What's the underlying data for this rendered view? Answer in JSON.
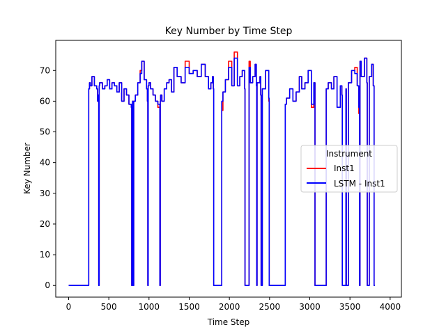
{
  "chart_data": {
    "type": "line",
    "title": "Key Number by Time Step",
    "xlabel": "Time Step",
    "ylabel": "Key Number",
    "xlim": [
      -160,
      4140
    ],
    "ylim": [
      -3.8,
      79.8
    ],
    "xticks": [
      0,
      500,
      1000,
      1500,
      2000,
      2500,
      3000,
      3500,
      4000
    ],
    "yticks": [
      0,
      10,
      20,
      30,
      40,
      50,
      60,
      70
    ],
    "grid": false,
    "legend": {
      "title": "Instrument",
      "position": "center-right"
    },
    "series": [
      {
        "name": "Inst1",
        "color": "#ff0000",
        "x": [
          0,
          245,
          250,
          260,
          270,
          290,
          320,
          350,
          360,
          370,
          375,
          380,
          385,
          420,
          450,
          480,
          510,
          540,
          570,
          600,
          630,
          660,
          690,
          720,
          750,
          780,
          785,
          795,
          800,
          805,
          810,
          830,
          860,
          890,
          910,
          940,
          970,
          980,
          985,
          990,
          1000,
          1020,
          1050,
          1080,
          1110,
          1135,
          1140,
          1145,
          1160,
          1190,
          1220,
          1250,
          1280,
          1310,
          1350,
          1400,
          1450,
          1500,
          1550,
          1600,
          1650,
          1700,
          1740,
          1770,
          1790,
          1800,
          1805,
          1900,
          1905,
          1920,
          1950,
          1990,
          2030,
          2060,
          2100,
          2130,
          2160,
          2190,
          2195,
          2240,
          2245,
          2260,
          2290,
          2320,
          2335,
          2340,
          2345,
          2380,
          2390,
          2395,
          2410,
          2450,
          2490,
          2495,
          2690,
          2695,
          2710,
          2750,
          2790,
          2830,
          2870,
          2900,
          2940,
          2980,
          3020,
          3050,
          3065,
          3070,
          3200,
          3205,
          3230,
          3270,
          3300,
          3340,
          3380,
          3400,
          3405,
          3450,
          3455,
          3480,
          3520,
          3560,
          3590,
          3610,
          3620,
          3625,
          3640,
          3680,
          3710,
          3715,
          3740,
          3770,
          3790,
          3800,
          3810
        ],
        "y": [
          0,
          0,
          64,
          66,
          65,
          68,
          65,
          64,
          60,
          62,
          0,
          65,
          66,
          64,
          65,
          67,
          64,
          66,
          65,
          63,
          66,
          60,
          64,
          62,
          59,
          58,
          0,
          60,
          54,
          0,
          60,
          62,
          66,
          70,
          73,
          67,
          64,
          60,
          0,
          65,
          66,
          64,
          62,
          60,
          58,
          0,
          60,
          62,
          60,
          64,
          66,
          67,
          63,
          71,
          68,
          66,
          73,
          69,
          70,
          68,
          72,
          68,
          64,
          66,
          68,
          64,
          0,
          0,
          57,
          63,
          67,
          73,
          65,
          76,
          65,
          68,
          70,
          64,
          0,
          0,
          73,
          66,
          68,
          72,
          65,
          0,
          66,
          68,
          62,
          0,
          64,
          70,
          60,
          0,
          0,
          59,
          61,
          64,
          60,
          63,
          68,
          64,
          66,
          70,
          58,
          66,
          0,
          0,
          0,
          64,
          66,
          64,
          68,
          58,
          65,
          62,
          0,
          64,
          0,
          66,
          70,
          71,
          65,
          56,
          0,
          73,
          68,
          74,
          66,
          0,
          68,
          72,
          65,
          0,
          0
        ]
      },
      {
        "name": "LSTM - Inst1",
        "color": "#0000ff",
        "x": [
          0,
          245,
          250,
          260,
          270,
          290,
          320,
          350,
          360,
          370,
          375,
          380,
          385,
          420,
          450,
          480,
          510,
          540,
          570,
          600,
          630,
          660,
          690,
          720,
          750,
          780,
          785,
          795,
          800,
          805,
          810,
          830,
          860,
          890,
          910,
          940,
          970,
          980,
          985,
          990,
          1000,
          1020,
          1050,
          1080,
          1110,
          1135,
          1140,
          1145,
          1160,
          1190,
          1220,
          1250,
          1280,
          1310,
          1350,
          1400,
          1450,
          1500,
          1550,
          1600,
          1650,
          1700,
          1740,
          1770,
          1790,
          1800,
          1805,
          1900,
          1905,
          1920,
          1950,
          1990,
          2030,
          2060,
          2100,
          2130,
          2160,
          2190,
          2195,
          2240,
          2245,
          2260,
          2290,
          2320,
          2335,
          2340,
          2345,
          2380,
          2390,
          2395,
          2410,
          2450,
          2490,
          2495,
          2690,
          2695,
          2710,
          2750,
          2790,
          2830,
          2870,
          2900,
          2940,
          2980,
          3020,
          3050,
          3065,
          3070,
          3200,
          3205,
          3230,
          3270,
          3300,
          3340,
          3380,
          3400,
          3405,
          3450,
          3455,
          3480,
          3520,
          3560,
          3590,
          3610,
          3620,
          3625,
          3640,
          3680,
          3710,
          3715,
          3740,
          3770,
          3790,
          3800,
          3810
        ],
        "y": [
          0,
          0,
          64,
          66,
          65,
          68,
          65,
          64,
          60,
          62,
          0,
          65,
          66,
          64,
          65,
          67,
          64,
          66,
          65,
          63,
          66,
          60,
          64,
          62,
          59,
          58,
          0,
          60,
          56,
          0,
          60,
          62,
          66,
          69,
          73,
          67,
          64,
          60,
          0,
          65,
          66,
          64,
          62,
          60,
          59,
          0,
          60,
          62,
          60,
          64,
          66,
          67,
          63,
          71,
          68,
          66,
          71,
          69,
          70,
          68,
          72,
          68,
          64,
          66,
          68,
          64,
          0,
          0,
          60,
          63,
          67,
          71,
          65,
          74,
          65,
          68,
          70,
          64,
          0,
          0,
          71,
          66,
          68,
          72,
          65,
          0,
          66,
          68,
          62,
          0,
          64,
          70,
          61,
          0,
          0,
          59,
          61,
          64,
          60,
          63,
          68,
          64,
          66,
          70,
          59,
          66,
          0,
          0,
          0,
          64,
          66,
          64,
          68,
          58,
          65,
          62,
          0,
          64,
          0,
          66,
          70,
          69,
          65,
          58,
          0,
          73,
          68,
          74,
          66,
          0,
          68,
          72,
          65,
          0,
          0
        ]
      }
    ]
  }
}
